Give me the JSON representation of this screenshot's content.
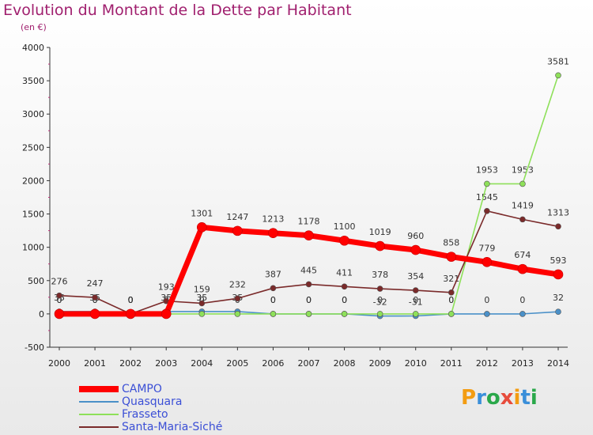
{
  "header": {
    "title": "Evolution du Montant de la Dette par Habitant",
    "subtitle": "(en €)"
  },
  "logo": {
    "text": "Proxiti",
    "colors": [
      "#f39c12",
      "#3a8fd9",
      "#2aa84a",
      "#e74c3c",
      "#f39c12",
      "#3a8fd9",
      "#2aa84a"
    ]
  },
  "chart_data": {
    "type": "line",
    "x": [
      "2000",
      "2001",
      "2002",
      "2003",
      "2004",
      "2005",
      "2006",
      "2007",
      "2008",
      "2009",
      "2010",
      "2011",
      "2012",
      "2013",
      "2014"
    ],
    "ylim": [
      -500,
      4000
    ],
    "yticks": [
      "-500",
      "0",
      "500",
      "1000",
      "1500",
      "2000",
      "2500",
      "3000",
      "3500",
      "4000"
    ],
    "grid": false,
    "legend_position": "bottom-left",
    "series": [
      {
        "name": "CAMPO",
        "color": "#ff0000",
        "values": [
          0,
          0,
          0,
          0,
          1301,
          1247,
          1213,
          1178,
          1100,
          1019,
          960,
          858,
          779,
          674,
          593
        ],
        "labels": [
          "0",
          "0",
          "0",
          "0",
          "1301",
          "1247",
          "1213",
          "1178",
          "1100",
          "1019",
          "960",
          "858",
          "779",
          "674",
          "593"
        ]
      },
      {
        "name": "Quasquara",
        "color": "#4a90c8",
        "values": [
          35,
          35,
          0,
          35,
          35,
          35,
          0,
          0,
          0,
          -32,
          -31,
          0,
          0,
          0,
          32
        ],
        "labels": [
          "35",
          "35",
          "0",
          "35",
          "35",
          "35",
          "0",
          "0",
          "0",
          "-32",
          "-31",
          "0",
          "0",
          "0",
          "32"
        ]
      },
      {
        "name": "Frasseto",
        "color": "#8ee05a",
        "values": [
          0,
          0,
          0,
          0,
          0,
          0,
          0,
          0,
          0,
          0,
          0,
          0,
          1953,
          1953,
          3581
        ],
        "labels": [
          "0",
          "0",
          "0",
          "0",
          "0",
          "0",
          "0",
          "0",
          "0",
          "0",
          "0",
          "0",
          "1953",
          "1953",
          "3581"
        ]
      },
      {
        "name": "Santa-Maria-Siché",
        "color": "#7a2a2a",
        "values": [
          276,
          247,
          0,
          193,
          159,
          232,
          387,
          445,
          411,
          378,
          354,
          321,
          1545,
          1419,
          1313
        ],
        "labels": [
          "276",
          "247",
          "0",
          "193",
          "159",
          "232",
          "387",
          "445",
          "411",
          "378",
          "354",
          "321",
          "1545",
          "1419",
          "1313"
        ]
      }
    ]
  }
}
